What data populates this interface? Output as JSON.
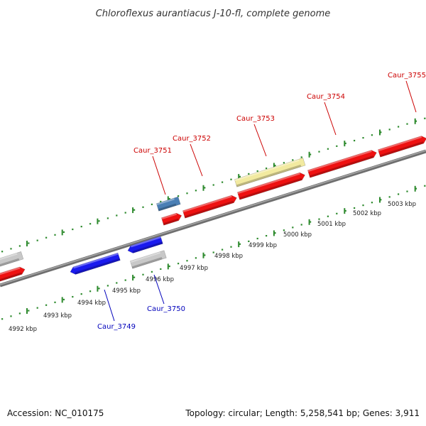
{
  "title": "Chloroflexus aurantiacus J-10-fl, complete genome",
  "footer": {
    "accession": "Accession: NC_010175",
    "summary": "Topology: circular; Length: 5,258,541 bp; Genes: 3,911"
  },
  "colors": {
    "forward_gene": "#ee1111",
    "reverse_gene": "#1a1aee",
    "pseudo_gene": "#c8c8c8",
    "rna_gene": "#4a7fb5",
    "misc_feature": "#f2eaa0",
    "backbone": "#8a8a8a",
    "ruler": "#2d8a2d",
    "forward_label": "#cc0000",
    "reverse_label": "#0000bb"
  },
  "scale_labels": [
    "4992 kbp",
    "4993 kbp",
    "4994 kbp",
    "4995 kbp",
    "4996 kbp",
    "4997 kbp",
    "4998 kbp",
    "4999 kbp",
    "5000 kbp",
    "5001 kbp",
    "5002 kbp",
    "5003 kbp"
  ],
  "gene_labels": [
    {
      "name": "Caur_3749",
      "strand": "reverse"
    },
    {
      "name": "Caur_3750",
      "strand": "reverse"
    },
    {
      "name": "Caur_3751",
      "strand": "forward"
    },
    {
      "name": "Caur_3752",
      "strand": "forward"
    },
    {
      "name": "Caur_3753",
      "strand": "forward"
    },
    {
      "name": "Caur_3754",
      "strand": "forward"
    },
    {
      "name": "Caur_3755",
      "strand": "forward"
    }
  ]
}
